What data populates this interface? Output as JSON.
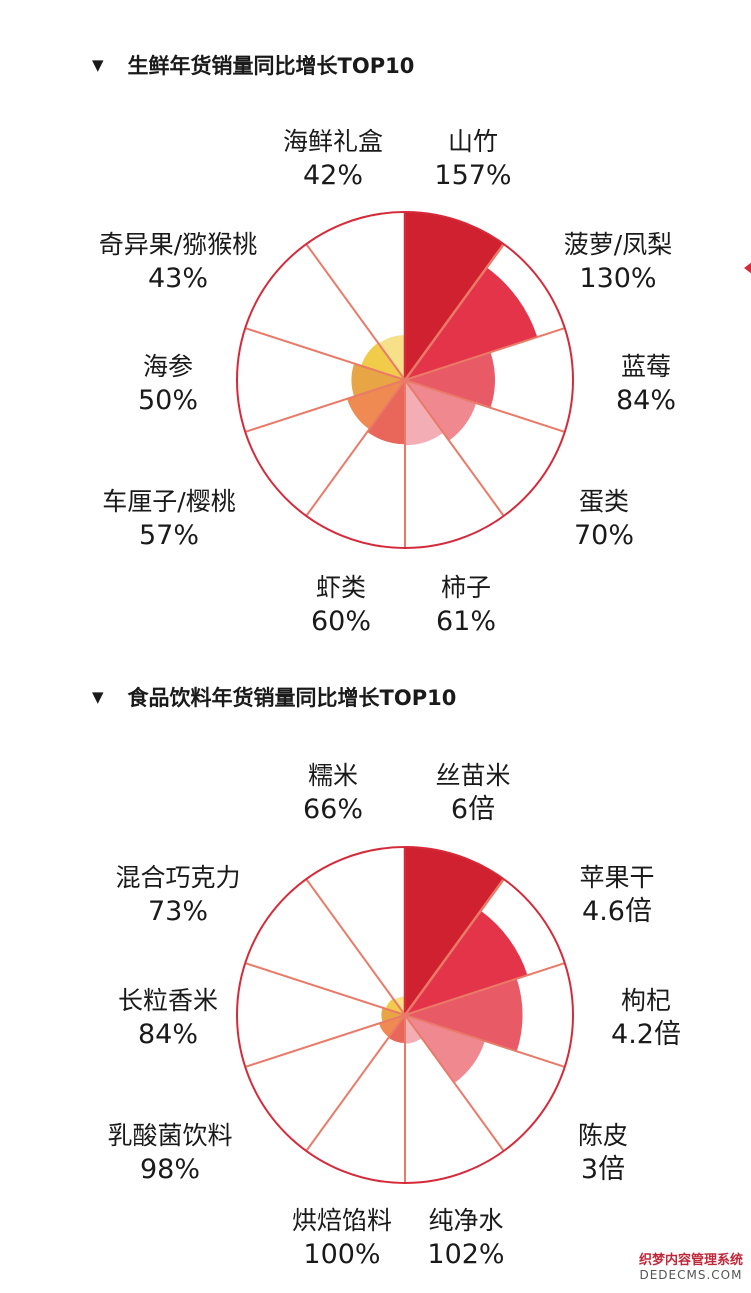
{
  "colors": {
    "outline": "#d42a3a",
    "radial": "#ea7a68",
    "palette": [
      "#cf2130",
      "#e3344a",
      "#e85a66",
      "#f08890",
      "#f3aeb5",
      "#e9665a",
      "#ef8a52",
      "#e8a546",
      "#f0cc4a",
      "#f6e08a"
    ]
  },
  "side_marker": "triangle-left-icon",
  "watermark": {
    "line1": "织梦内容管理系统",
    "line2": "DEDECMS.COM"
  },
  "chart_data": [
    {
      "type": "rose",
      "title": "生鲜年货销量同比增长TOP10",
      "unit": "%",
      "categories": [
        "山竹",
        "菠萝/凤梨",
        "蓝莓",
        "蛋类",
        "柿子",
        "虾类",
        "车厘子/樱桃",
        "海参",
        "奇异果/猕猴桃",
        "海鲜礼盒"
      ],
      "values": [
        157,
        130,
        84,
        70,
        61,
        60,
        57,
        50,
        43,
        42
      ],
      "value_labels": [
        "157%",
        "130%",
        "84%",
        "70%",
        "61%",
        "60%",
        "57%",
        "50%",
        "43%",
        "42%"
      ],
      "max": 157
    },
    {
      "type": "rose",
      "title": "食品饮料年货销量同比增长TOP10",
      "unit": "倍",
      "categories": [
        "丝苗米",
        "苹果干",
        "枸杞",
        "陈皮",
        "纯净水",
        "烘焙馅料",
        "乳酸菌饮料",
        "长粒香米",
        "混合巧克力",
        "糯米"
      ],
      "values": [
        6,
        4.6,
        4.2,
        3,
        1.02,
        1.0,
        0.98,
        0.84,
        0.73,
        0.66
      ],
      "value_labels": [
        "6倍",
        "4.6倍",
        "4.2倍",
        "3倍",
        "102%",
        "100%",
        "98%",
        "84%",
        "73%",
        "66%"
      ],
      "max": 6
    }
  ]
}
